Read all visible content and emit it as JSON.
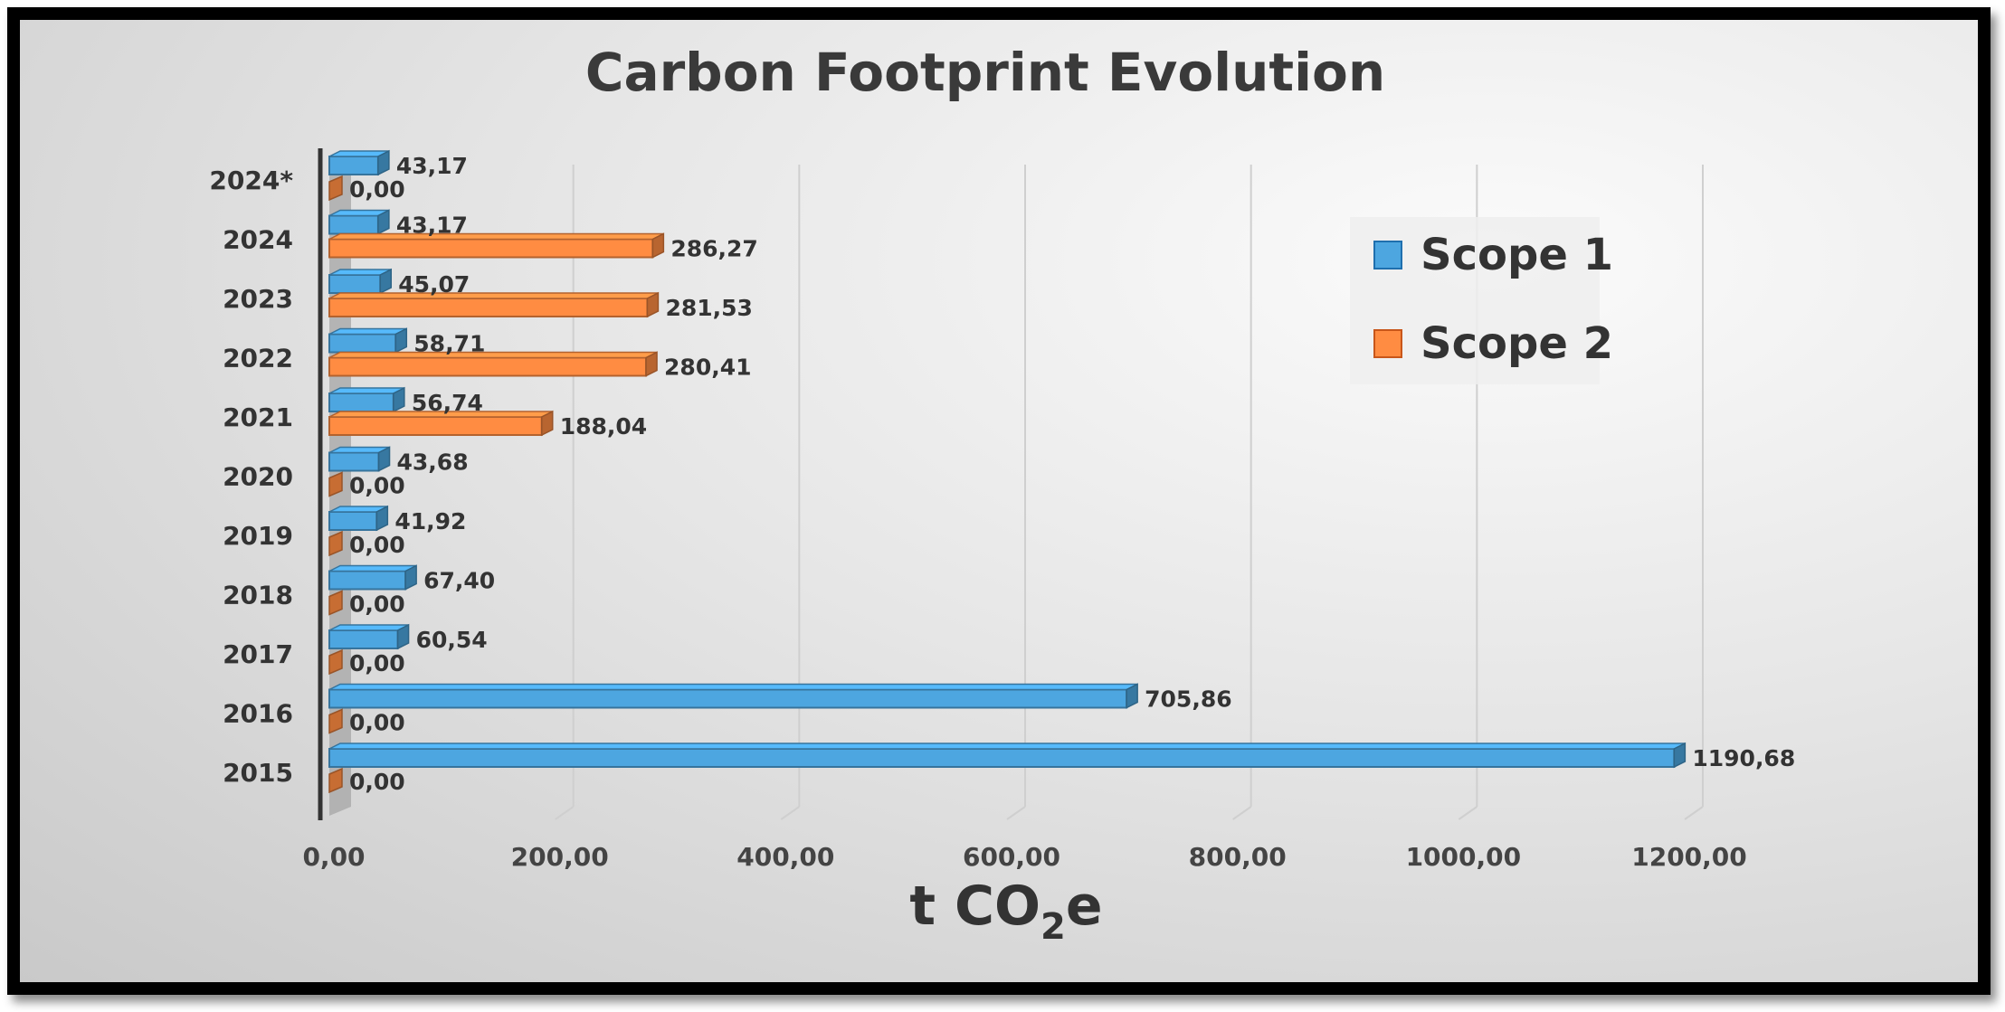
{
  "chart_data": {
    "type": "bar",
    "orientation": "horizontal",
    "title": "Carbon Footprint Evolution",
    "xlabel_main": "t CO",
    "xlabel_sub": "2",
    "xlabel_tail": "e",
    "categories": [
      "2015",
      "2016",
      "2017",
      "2018",
      "2019",
      "2020",
      "2021",
      "2022",
      "2023",
      "2024",
      "2024*"
    ],
    "series": [
      {
        "name": "Scope 1",
        "color": "#4da6e0",
        "values": [
          1190.68,
          705.86,
          60.54,
          67.4,
          41.92,
          43.68,
          56.74,
          58.71,
          45.07,
          43.17,
          43.17
        ],
        "labels": [
          "1190,68",
          "705,86",
          "60,54",
          "67,40",
          "41,92",
          "43,68",
          "56,74",
          "58,71",
          "45,07",
          "43,17",
          "43,17"
        ]
      },
      {
        "name": "Scope 2",
        "color": "#ff8c42",
        "values": [
          0,
          0,
          0,
          0,
          0,
          0,
          188.04,
          280.41,
          281.53,
          286.27,
          0
        ],
        "labels": [
          "0,00",
          "0,00",
          "0,00",
          "0,00",
          "0,00",
          "0,00",
          "188,04",
          "280,41",
          "281,53",
          "286,27",
          "0,00"
        ]
      }
    ],
    "xlim": [
      0,
      1200
    ],
    "xticks": [
      0,
      200,
      400,
      600,
      800,
      1000,
      1200
    ],
    "xtick_labels": [
      "0,00",
      "200,00",
      "400,00",
      "600,00",
      "800,00",
      "1000,00",
      "1200,00"
    ],
    "grid": "vertical",
    "legend": "right",
    "style": "3d-bar"
  }
}
